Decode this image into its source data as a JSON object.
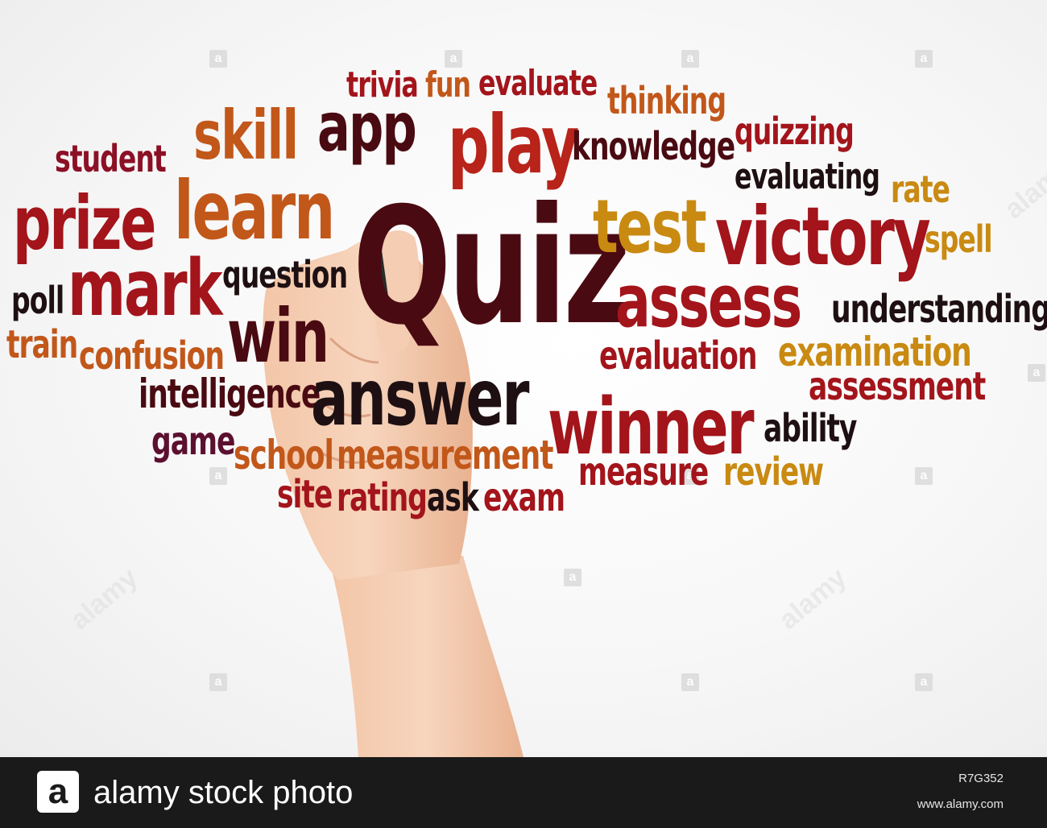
{
  "words": [
    {
      "text": "trivia"
    },
    {
      "text": "fun"
    },
    {
      "text": "evaluate"
    },
    {
      "text": "thinking"
    },
    {
      "text": "skill"
    },
    {
      "text": "app"
    },
    {
      "text": "play"
    },
    {
      "text": "knowledge"
    },
    {
      "text": "quizzing"
    },
    {
      "text": "student"
    },
    {
      "text": "evaluating"
    },
    {
      "text": "rate"
    },
    {
      "text": "prize"
    },
    {
      "text": "learn"
    },
    {
      "text": "Quiz"
    },
    {
      "text": "test"
    },
    {
      "text": "victory"
    },
    {
      "text": "spell"
    },
    {
      "text": "mark"
    },
    {
      "text": "question"
    },
    {
      "text": "assess"
    },
    {
      "text": "poll"
    },
    {
      "text": "understanding"
    },
    {
      "text": "win"
    },
    {
      "text": "train"
    },
    {
      "text": "confusion"
    },
    {
      "text": "evaluation"
    },
    {
      "text": "examination"
    },
    {
      "text": "intelligence"
    },
    {
      "text": "answer"
    },
    {
      "text": "assessment"
    },
    {
      "text": "winner"
    },
    {
      "text": "ability"
    },
    {
      "text": "game"
    },
    {
      "text": "school"
    },
    {
      "text": "measurement"
    },
    {
      "text": "measure"
    },
    {
      "text": "review"
    },
    {
      "text": "site"
    },
    {
      "text": "rating"
    },
    {
      "text": "ask"
    },
    {
      "text": "exam"
    }
  ],
  "colors": {
    "dark_maroon": "#4a0a12",
    "crimson": "#a3141b",
    "red": "#b8231a",
    "orange": "#c2571a",
    "amber": "#c98a12",
    "near_black": "#1e1012",
    "purple_maroon": "#5c1030"
  },
  "footer": {
    "logo_letter": "a",
    "brand": "alamy stock photo",
    "image_id": "R7G352",
    "url": "www.alamy.com"
  },
  "watermark": {
    "letter": "a",
    "text": "alamy"
  }
}
